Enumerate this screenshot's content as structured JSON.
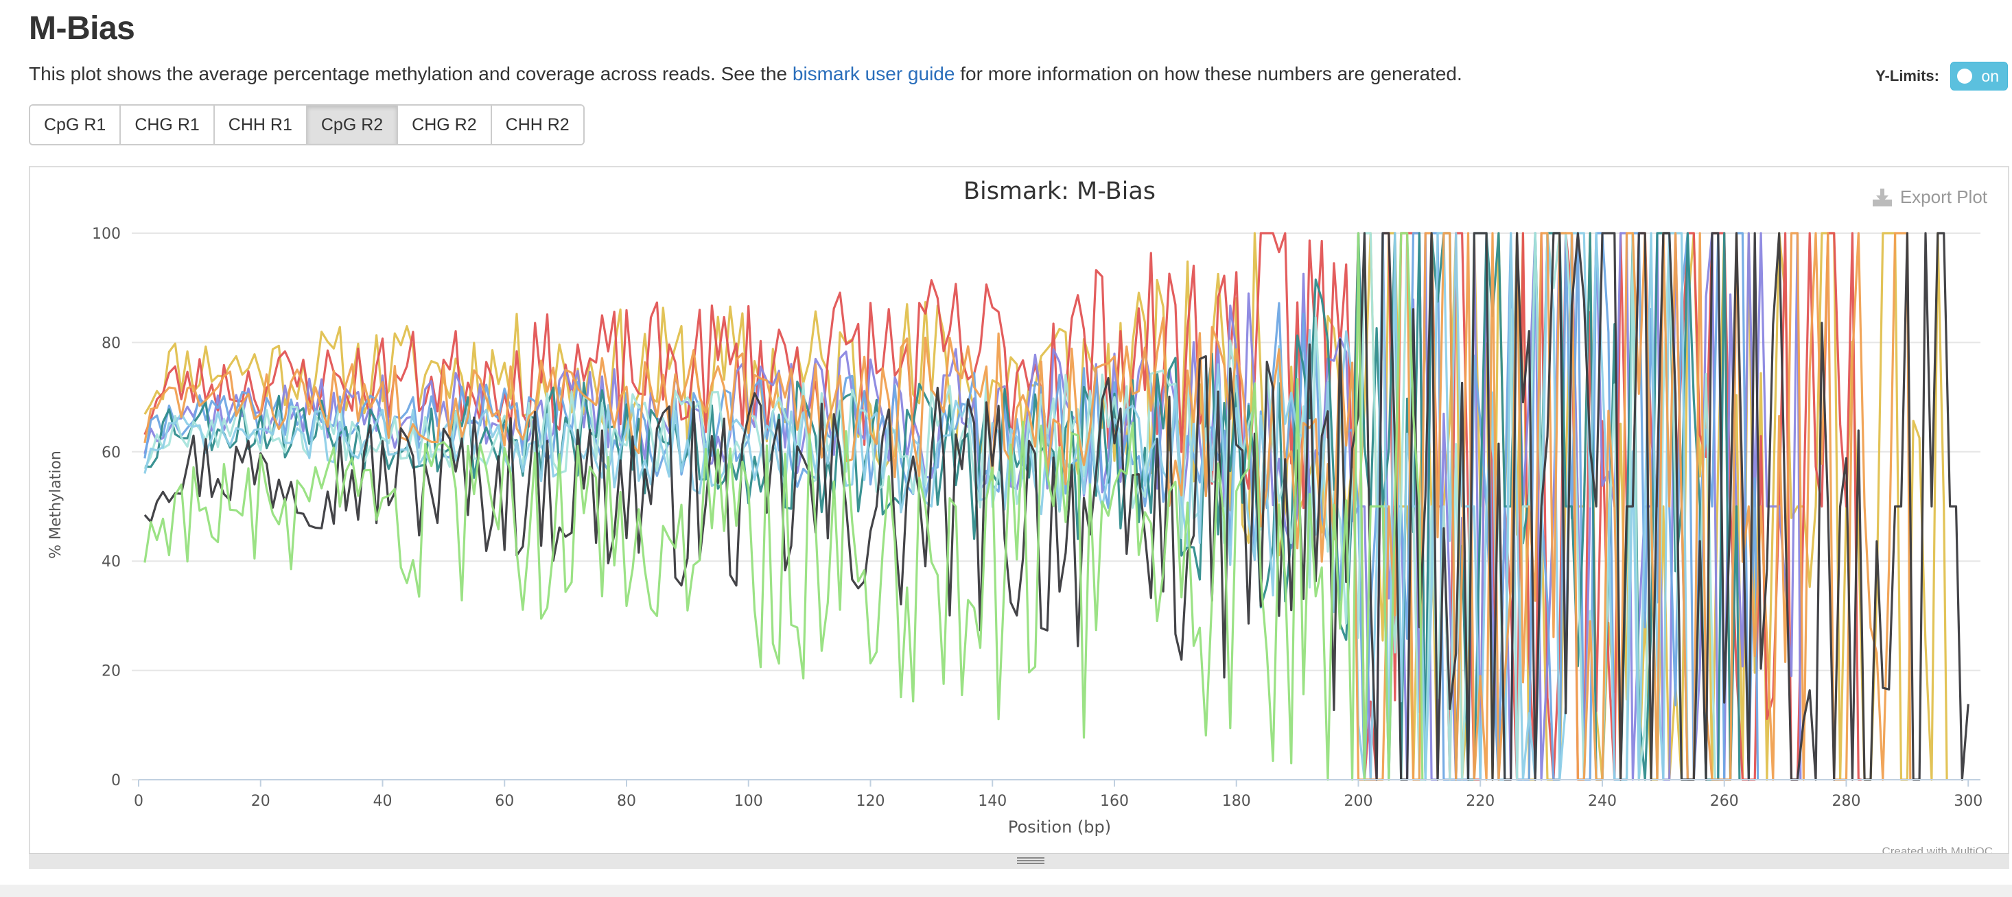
{
  "page": {
    "title": "M-Bias",
    "description_before": "This plot shows the average percentage methylation and coverage across reads. See the ",
    "description_link": "bismark user guide",
    "description_after": " for more information on how these numbers are generated."
  },
  "controls": {
    "ylimits_label": "Y-Limits:",
    "ylimits_state": "on",
    "tabs": [
      {
        "label": "CpG R1",
        "active": false
      },
      {
        "label": "CHG R1",
        "active": false
      },
      {
        "label": "CHH R1",
        "active": false
      },
      {
        "label": "CpG R2",
        "active": true
      },
      {
        "label": "CHG R2",
        "active": false
      },
      {
        "label": "CHH R2",
        "active": false
      }
    ]
  },
  "plot": {
    "export_label": "Export Plot",
    "credit": "Created with MultiQC"
  },
  "chart_data": {
    "type": "line",
    "title": "Bismark: M-Bias",
    "xlabel": "Position (bp)",
    "ylabel": "% Methylation",
    "xlim": [
      0,
      302
    ],
    "ylim": [
      0,
      100
    ],
    "x_ticks": [
      "0",
      "20",
      "40",
      "60",
      "80",
      "100",
      "120",
      "140",
      "160",
      "180",
      "200",
      "220",
      "240",
      "260",
      "280",
      "300"
    ],
    "y_ticks": [
      "0",
      "20",
      "40",
      "60",
      "80",
      "100"
    ],
    "grid": true,
    "legend": "none",
    "series_style": [
      {
        "color": "#e0c04e",
        "level": 76,
        "drift": -4,
        "noise": 3.2,
        "end": 296,
        "seed": 11
      },
      {
        "color": "#e25454",
        "level": 72,
        "drift": 6,
        "noise": 3.0,
        "end": 282,
        "seed": 23
      },
      {
        "color": "#8a86e0",
        "level": 68,
        "drift": -2,
        "noise": 2.4,
        "end": 272,
        "seed": 37
      },
      {
        "color": "#6fa8e4",
        "level": 67,
        "drift": -5,
        "noise": 2.2,
        "end": 265,
        "seed": 41
      },
      {
        "color": "#2f8c8c",
        "level": 66,
        "drift": -8,
        "noise": 2.8,
        "end": 262,
        "seed": 53
      },
      {
        "color": "#a8e4dc",
        "level": 65,
        "drift": -4,
        "noise": 2.2,
        "end": 258,
        "seed": 67
      },
      {
        "color": "#8ecfe8",
        "level": 64,
        "drift": -6,
        "noise": 2.0,
        "end": 254,
        "seed": 71
      },
      {
        "color": "#f0a050",
        "level": 70,
        "drift": -2,
        "noise": 2.6,
        "end": 290,
        "seed": 83
      },
      {
        "color": "#3a3a3e",
        "level": 58,
        "drift": -10,
        "noise": 4.2,
        "end": 300,
        "seed": 97
      },
      {
        "color": "#96e07e",
        "level": 50,
        "drift": -12,
        "noise": 5.2,
        "end": 210,
        "seed": 103
      }
    ]
  }
}
